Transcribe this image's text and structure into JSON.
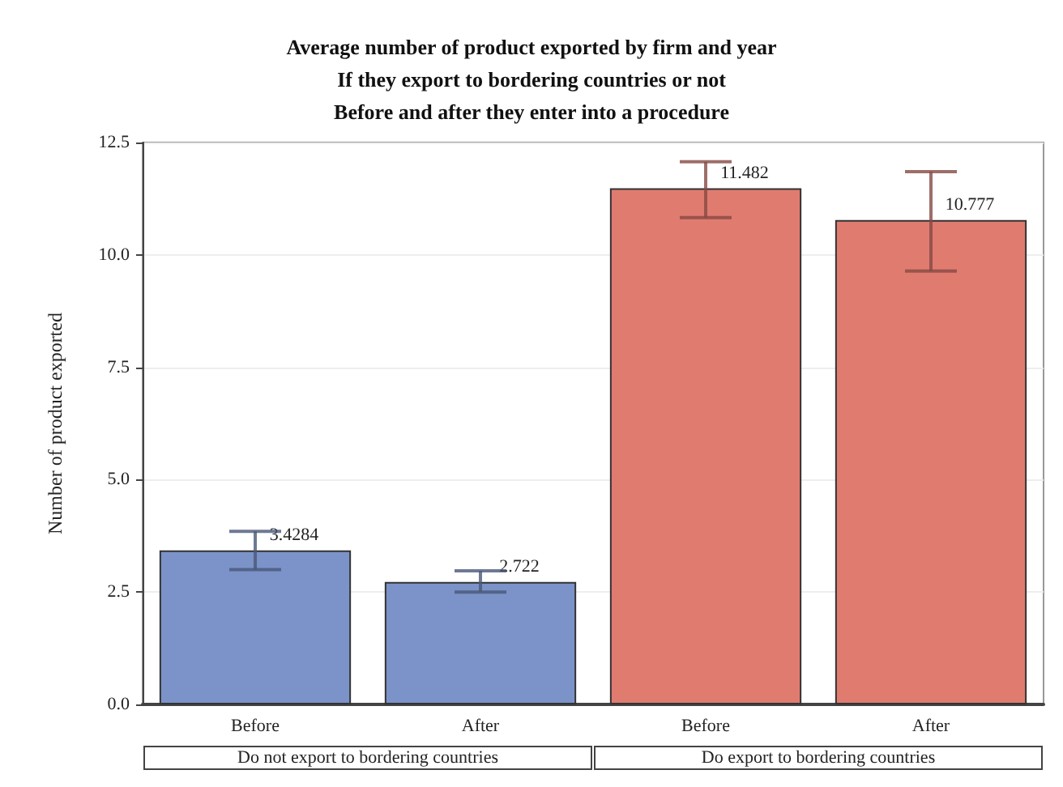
{
  "chart_data": {
    "type": "bar",
    "title": "Average number of product exported by firm and year\nIf they export to bordering countries or not\nBefore and after they enter into a procedure",
    "ylabel": "Number of product exported",
    "categories": [
      "Before",
      "After",
      "Before",
      "After"
    ],
    "values": [
      3.4284,
      2.722,
      11.482,
      10.777
    ],
    "colors": [
      "#7b93c8",
      "#7b93c8",
      "#e07b70",
      "#e07b70"
    ],
    "errors": [
      [
        3.0,
        3.85
      ],
      [
        2.5,
        2.97
      ],
      [
        10.83,
        12.07
      ],
      [
        9.64,
        11.85
      ]
    ],
    "data_labels": true,
    "ylim": [
      0,
      12.5
    ],
    "yticks": [
      {
        "value": 0,
        "label": "0.0"
      },
      2.5,
      {
        "value": 5,
        "label": "5.0"
      },
      7.5,
      {
        "value": 10,
        "label": "10.0"
      },
      12.5
    ],
    "annotations": [
      "Do not export to bordering countries",
      "Do export to bordering countries"
    ],
    "grid": "y"
  }
}
